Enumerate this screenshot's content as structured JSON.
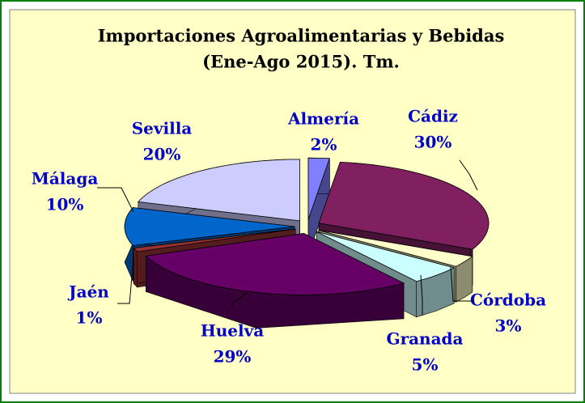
{
  "chart_data": {
    "type": "pie3d",
    "title": [
      "Importaciones Agroalimentarias y Bebidas",
      "(Ene-Ago 2015). Tm."
    ],
    "categories": [
      "Almería",
      "Cádiz",
      "Córdoba",
      "Granada",
      "Huelva",
      "Jaén",
      "Málaga",
      "Sevilla"
    ],
    "values": [
      2,
      30,
      3,
      5,
      29,
      1,
      10,
      20
    ],
    "value_labels": [
      "2%",
      "30%",
      "3%",
      "5%",
      "29%",
      "1%",
      "10%",
      "20%"
    ],
    "colors": [
      "#8080ff",
      "#802060",
      "#ffffcc",
      "#ccffff",
      "#660066",
      "#993333",
      "#0066cc",
      "#ccccff"
    ]
  }
}
